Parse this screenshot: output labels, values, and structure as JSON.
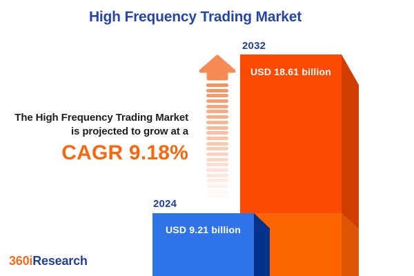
{
  "title": {
    "text": "High Frequency Trading Market",
    "color": "#2546A5"
  },
  "description": {
    "line1": "The High Frequency Trading Market",
    "line2": "is projected to grow at a",
    "cagr_text": "CAGR 9.18%",
    "cagr_color": "#F7680D",
    "text_color": "#1D1D1D"
  },
  "chart_data": {
    "type": "bar",
    "title": "High Frequency Trading Market",
    "unit": "USD billion",
    "categories": [
      "2024",
      "2032"
    ],
    "values": [
      9.21,
      18.61
    ],
    "bar_labels": [
      "USD 9.21 billion",
      "USD 18.61 billion"
    ],
    "cagr_percent": 9.18,
    "legend": false,
    "axes_visible": false,
    "bars": [
      {
        "year": "2024",
        "label": "USD 9.21 billion",
        "front_color": "#2E74E8",
        "side_color": "#04318B"
      },
      {
        "year": "2032",
        "label": "USD 18.61 billion",
        "front_color_top": "#FB4A02",
        "front_color_bottom": "#FC6502",
        "side_color_top": "#D23D04",
        "side_color_bottom": "#DC5404"
      }
    ]
  },
  "arrow": {
    "head_color": "#F68B55",
    "strip_color": "#F68B55",
    "strip_count": 22
  },
  "logo": {
    "part1": "360i",
    "part2": "Research",
    "part1_color": "#F26A21",
    "part2_color": "#20409A"
  }
}
